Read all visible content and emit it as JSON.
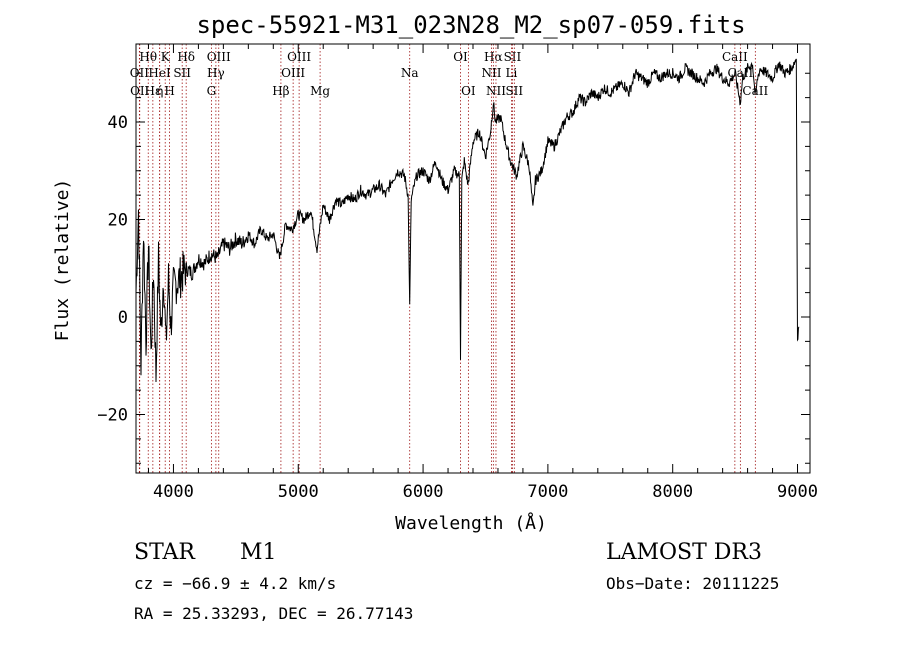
{
  "chart_data": {
    "type": "line",
    "title": "spec-55921-M31_023N28_M2_sp07-059.fits",
    "xlabel": "Wavelength (Å)",
    "ylabel": "Flux (relative)",
    "xlim": [
      3700,
      9100
    ],
    "ylim": [
      -32,
      56
    ],
    "xticks": [
      4000,
      5000,
      6000,
      7000,
      8000,
      9000
    ],
    "yticks": [
      -20,
      0,
      20,
      40
    ],
    "spectrum": {
      "x": [
        3700,
        3720,
        3740,
        3760,
        3780,
        3800,
        3820,
        3840,
        3860,
        3880,
        3900,
        3920,
        3940,
        3960,
        3980,
        4000,
        4050,
        4100,
        4150,
        4200,
        4250,
        4300,
        4350,
        4400,
        4450,
        4500,
        4550,
        4600,
        4650,
        4700,
        4750,
        4800,
        4850,
        4900,
        4950,
        5000,
        5050,
        5100,
        5150,
        5200,
        5250,
        5300,
        5350,
        5400,
        5450,
        5500,
        5550,
        5600,
        5650,
        5700,
        5750,
        5800,
        5850,
        5880,
        5893,
        5905,
        5930,
        5950,
        6000,
        6050,
        6100,
        6150,
        6200,
        6250,
        6290,
        6300,
        6310,
        6330,
        6360,
        6400,
        6450,
        6500,
        6540,
        6563,
        6580,
        6620,
        6660,
        6700,
        6750,
        6800,
        6850,
        6880,
        6900,
        6950,
        7000,
        7050,
        7100,
        7150,
        7200,
        7250,
        7300,
        7350,
        7400,
        7450,
        7500,
        7550,
        7600,
        7650,
        7700,
        7750,
        7800,
        7850,
        7900,
        7950,
        8000,
        8050,
        8100,
        8150,
        8200,
        8250,
        8300,
        8350,
        8400,
        8450,
        8500,
        8520,
        8542,
        8560,
        8600,
        8640,
        8662,
        8680,
        8700,
        8750,
        8800,
        8850,
        8900,
        8950,
        8990,
        9000,
        9010
      ],
      "y": [
        5,
        22,
        -10,
        18,
        -5,
        15,
        -8,
        10,
        -12,
        12,
        -4,
        9,
        -6,
        8,
        -2,
        6,
        8,
        10,
        9,
        12,
        11,
        13,
        12,
        15,
        14,
        16,
        15,
        17,
        15,
        18,
        16,
        17,
        12,
        19,
        18,
        21,
        20,
        22,
        14,
        23,
        20,
        24,
        23,
        25,
        24,
        26,
        25,
        26,
        27,
        25,
        28,
        30,
        29,
        25,
        2,
        24,
        27,
        29,
        30,
        28,
        32,
        28,
        26,
        30,
        29,
        -8,
        28,
        32,
        27,
        36,
        38,
        33,
        38,
        44,
        40,
        41,
        36,
        32,
        29,
        35,
        31,
        22,
        28,
        30,
        36,
        35,
        38,
        41,
        42,
        45,
        44,
        46,
        45,
        47,
        46,
        47,
        48,
        46,
        50,
        49,
        48,
        50,
        49,
        50,
        50,
        49,
        51,
        50,
        49,
        48,
        50,
        51,
        49,
        48,
        50,
        47,
        44,
        49,
        51,
        52,
        45,
        49,
        51,
        50,
        49,
        52,
        50,
        51,
        53,
        -5,
        -2
      ]
    },
    "lines": [
      {
        "label": "Hθ",
        "w": 3798,
        "row": 1
      },
      {
        "label": "OII",
        "w": 3727,
        "row": 2
      },
      {
        "label": "OII",
        "w": 3730,
        "row": 3
      },
      {
        "label": "Hε",
        "w": 3835,
        "row": 3
      },
      {
        "label": "HeI",
        "w": 3889,
        "row": 2
      },
      {
        "label": "K",
        "w": 3934,
        "row": 1
      },
      {
        "label": "ή",
        "w": 3890,
        "row": 3
      },
      {
        "label": "SII",
        "w": 4070,
        "row": 2
      },
      {
        "label": "H",
        "w": 3969,
        "row": 3
      },
      {
        "label": "Hδ",
        "w": 4102,
        "row": 1
      },
      {
        "label": "OIII",
        "w": 4363,
        "row": 1
      },
      {
        "label": "Hγ",
        "w": 4340,
        "row": 2
      },
      {
        "label": "G",
        "w": 4304,
        "row": 3
      },
      {
        "label": "Hβ",
        "w": 4861,
        "row": 3
      },
      {
        "label": "OIII",
        "w": 5007,
        "row": 1
      },
      {
        "label": "OIII",
        "w": 4959,
        "row": 2
      },
      {
        "label": "Mg",
        "w": 5175,
        "row": 3
      },
      {
        "label": "Na",
        "w": 5893,
        "row": 2
      },
      {
        "label": "OI",
        "w": 6300,
        "row": 1
      },
      {
        "label": "OI",
        "w": 6363,
        "row": 3
      },
      {
        "label": "Hα",
        "w": 6563,
        "row": 1
      },
      {
        "label": "SII",
        "w": 6716,
        "row": 1
      },
      {
        "label": "NII",
        "w": 6548,
        "row": 2
      },
      {
        "label": "Li",
        "w": 6708,
        "row": 2
      },
      {
        "label": "NII",
        "w": 6584,
        "row": 3
      },
      {
        "label": "SII",
        "w": 6731,
        "row": 3
      },
      {
        "label": "CaII",
        "w": 8498,
        "row": 1
      },
      {
        "label": "CaII",
        "w": 8542,
        "row": 2
      },
      {
        "label": "CaII",
        "w": 8662,
        "row": 3
      }
    ]
  },
  "info": {
    "object_type": "STAR",
    "subclass": "M1",
    "survey": "LAMOST  DR3",
    "cz": "cz = −66.9 ± 4.2 km/s",
    "obs_date": "Obs−Date: 20111225",
    "coords": "RA =  25.33293, DEC =  26.77143"
  },
  "colors": {
    "spectrum": "#000000",
    "line_marker": "#a01818"
  }
}
